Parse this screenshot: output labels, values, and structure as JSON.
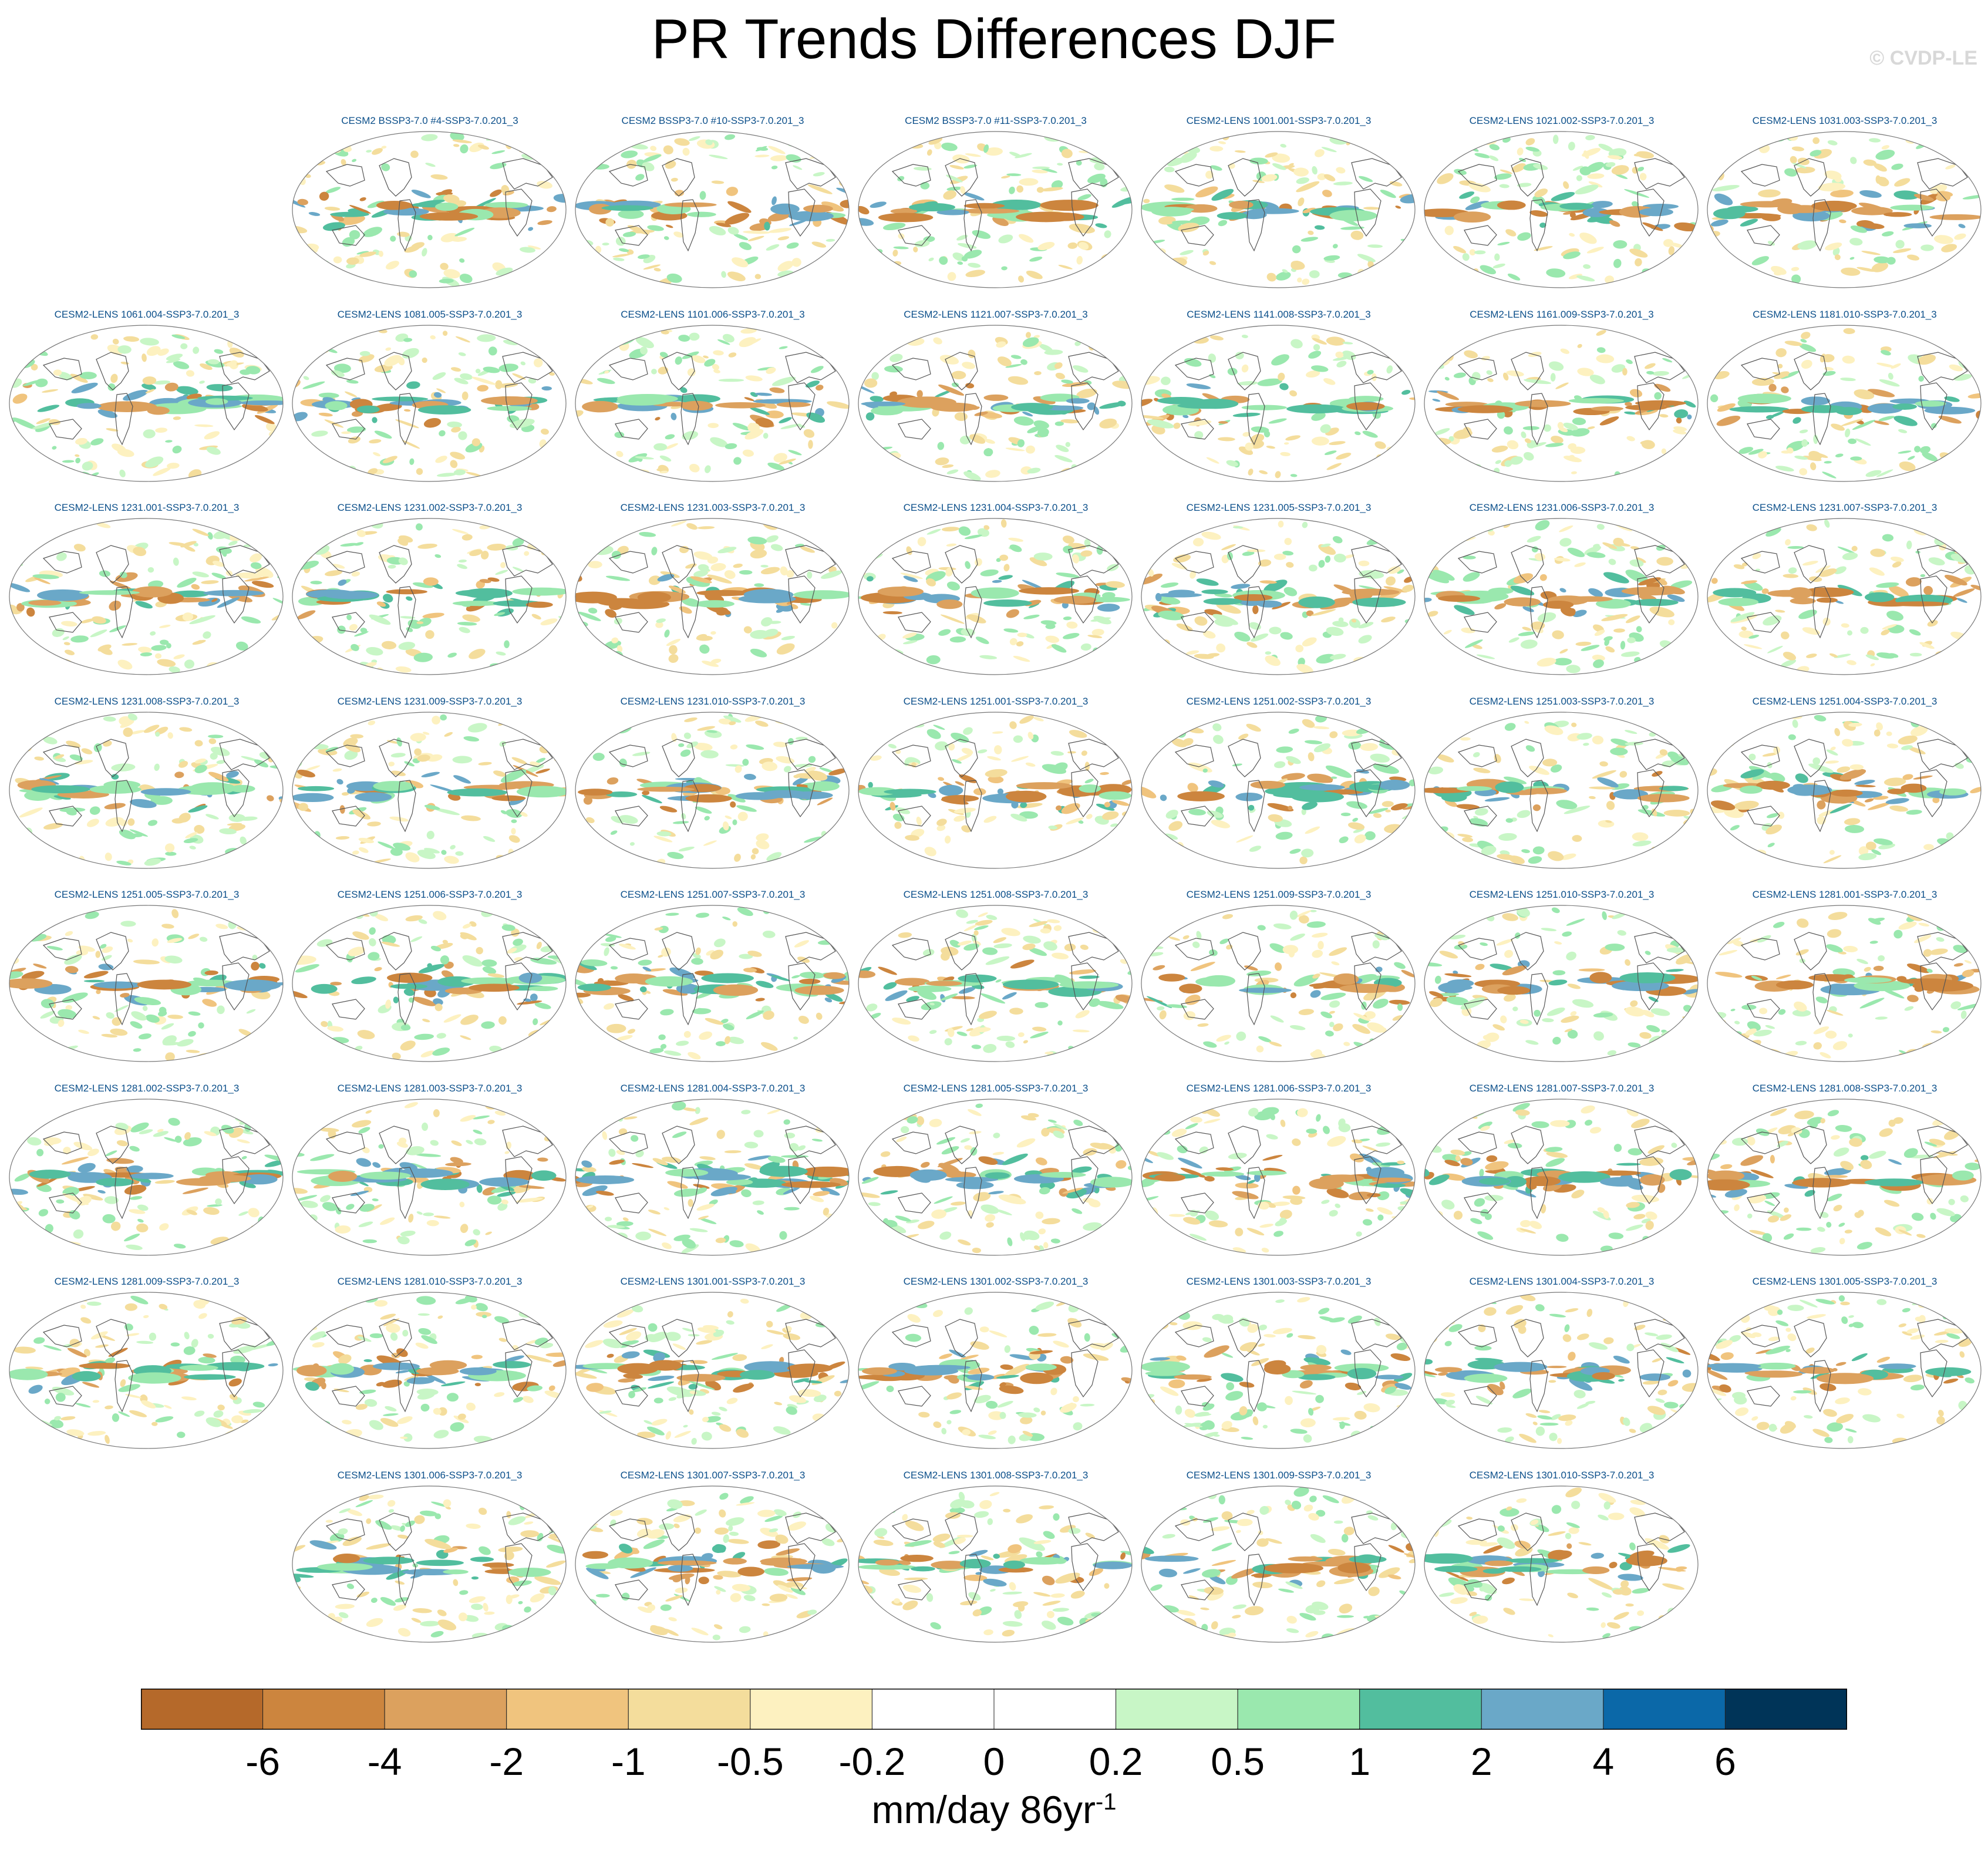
{
  "title": "PR Trends Differences DJF",
  "watermark": "© CVDP-LE",
  "chart_data": {
    "type": "heatmap",
    "title": "PR Trends Differences DJF",
    "projection": "Robinson (global map)",
    "units_label": "mm/day 86yr",
    "units_exponent": "-1",
    "grid_columns": 7,
    "rows": [
      [
        "",
        "CESM2 BSSP3-7.0 #4-SSP3-7.0.201_3",
        "CESM2 BSSP3-7.0 #10-SSP3-7.0.201_3",
        "CESM2 BSSP3-7.0 #11-SSP3-7.0.201_3",
        "CESM2-LENS 1001.001-SSP3-7.0.201_3",
        "CESM2-LENS 1021.002-SSP3-7.0.201_3",
        "CESM2-LENS 1031.003-SSP3-7.0.201_3"
      ],
      [
        "CESM2-LENS 1061.004-SSP3-7.0.201_3",
        "CESM2-LENS 1081.005-SSP3-7.0.201_3",
        "CESM2-LENS 1101.006-SSP3-7.0.201_3",
        "CESM2-LENS 1121.007-SSP3-7.0.201_3",
        "CESM2-LENS 1141.008-SSP3-7.0.201_3",
        "CESM2-LENS 1161.009-SSP3-7.0.201_3",
        "CESM2-LENS 1181.010-SSP3-7.0.201_3"
      ],
      [
        "CESM2-LENS 1231.001-SSP3-7.0.201_3",
        "CESM2-LENS 1231.002-SSP3-7.0.201_3",
        "CESM2-LENS 1231.003-SSP3-7.0.201_3",
        "CESM2-LENS 1231.004-SSP3-7.0.201_3",
        "CESM2-LENS 1231.005-SSP3-7.0.201_3",
        "CESM2-LENS 1231.006-SSP3-7.0.201_3",
        "CESM2-LENS 1231.007-SSP3-7.0.201_3"
      ],
      [
        "CESM2-LENS 1231.008-SSP3-7.0.201_3",
        "CESM2-LENS 1231.009-SSP3-7.0.201_3",
        "CESM2-LENS 1231.010-SSP3-7.0.201_3",
        "CESM2-LENS 1251.001-SSP3-7.0.201_3",
        "CESM2-LENS 1251.002-SSP3-7.0.201_3",
        "CESM2-LENS 1251.003-SSP3-7.0.201_3",
        "CESM2-LENS 1251.004-SSP3-7.0.201_3"
      ],
      [
        "CESM2-LENS 1251.005-SSP3-7.0.201_3",
        "CESM2-LENS 1251.006-SSP3-7.0.201_3",
        "CESM2-LENS 1251.007-SSP3-7.0.201_3",
        "CESM2-LENS 1251.008-SSP3-7.0.201_3",
        "CESM2-LENS 1251.009-SSP3-7.0.201_3",
        "CESM2-LENS 1251.010-SSP3-7.0.201_3",
        "CESM2-LENS 1281.001-SSP3-7.0.201_3"
      ],
      [
        "CESM2-LENS 1281.002-SSP3-7.0.201_3",
        "CESM2-LENS 1281.003-SSP3-7.0.201_3",
        "CESM2-LENS 1281.004-SSP3-7.0.201_3",
        "CESM2-LENS 1281.005-SSP3-7.0.201_3",
        "CESM2-LENS 1281.006-SSP3-7.0.201_3",
        "CESM2-LENS 1281.007-SSP3-7.0.201_3",
        "CESM2-LENS 1281.008-SSP3-7.0.201_3"
      ],
      [
        "CESM2-LENS 1281.009-SSP3-7.0.201_3",
        "CESM2-LENS 1281.010-SSP3-7.0.201_3",
        "CESM2-LENS 1301.001-SSP3-7.0.201_3",
        "CESM2-LENS 1301.002-SSP3-7.0.201_3",
        "CESM2-LENS 1301.003-SSP3-7.0.201_3",
        "CESM2-LENS 1301.004-SSP3-7.0.201_3",
        "CESM2-LENS 1301.005-SSP3-7.0.201_3"
      ],
      [
        "",
        "CESM2-LENS 1301.006-SSP3-7.0.201_3",
        "CESM2-LENS 1301.007-SSP3-7.0.201_3",
        "CESM2-LENS 1301.008-SSP3-7.0.201_3",
        "CESM2-LENS 1301.009-SSP3-7.0.201_3",
        "CESM2-LENS 1301.010-SSP3-7.0.201_3",
        ""
      ]
    ],
    "colorbar": {
      "tick_labels": [
        "-6",
        "-4",
        "-2",
        "-1",
        "-0.5",
        "-0.2",
        "0",
        "0.2",
        "0.5",
        "1",
        "2",
        "4",
        "6"
      ],
      "colors": [
        "#b5692a",
        "#cc853e",
        "#dca15e",
        "#f0c47e",
        "#f4dd9c",
        "#fdf1c0",
        "#ffffff",
        "#ffffff",
        "#c8f6c6",
        "#9ae8ae",
        "#52be9e",
        "#6aa8c8",
        "#0b68a8",
        "#003458"
      ]
    },
    "dominant_colors": {
      "positive_high": "#52be9e",
      "positive_low": "#9ae8ae",
      "negative_low": "#f4dd9c",
      "negative_high": "#cc853e",
      "coastline": "#555555"
    }
  }
}
